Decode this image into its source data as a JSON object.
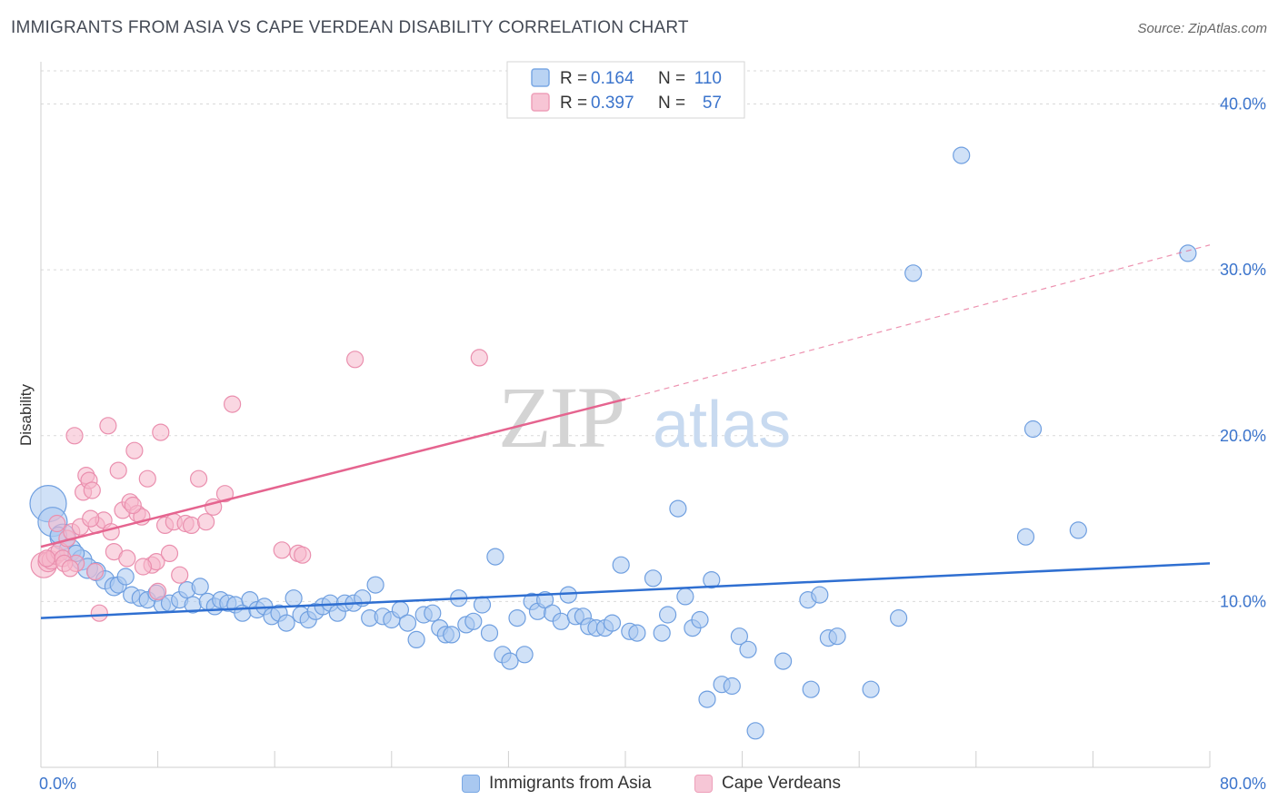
{
  "title": "IMMIGRANTS FROM ASIA VS CAPE VERDEAN DISABILITY CORRELATION CHART",
  "source": "Source: ZipAtlas.com",
  "watermark": {
    "zip": "ZIP",
    "atlas": "atlas"
  },
  "colors": {
    "blue": "#2f6fd1",
    "blue_fill": "#a9c8f0",
    "pink": "#e5648f",
    "pink_fill": "#f6b7cb",
    "value_text": "#3b74cc",
    "grid": "#d9d9d9"
  },
  "chart_data": {
    "type": "scatter",
    "ylabel": "Disability",
    "x_tick_labels": [
      "0.0%",
      "80.0%"
    ],
    "y_tick_labels": [
      "10.0%",
      "20.0%",
      "30.0%",
      "40.0%"
    ],
    "y_ticks": [
      10,
      20,
      30,
      40
    ],
    "xlim": [
      0,
      80
    ],
    "ylim": [
      0,
      42
    ],
    "grid": true,
    "legend": {
      "placement": "top-center",
      "entries": [
        {
          "r_label": "R =",
          "r_value": "0.164",
          "n_label": "N =",
          "n_value": "110"
        },
        {
          "r_label": "R =",
          "r_value": "0.397",
          "n_label": "N =",
          "n_value": "57"
        }
      ]
    },
    "series": [
      {
        "name": "Immigrants from Asia",
        "color": "#2f6fd1",
        "trend": {
          "x": [
            0,
            80
          ],
          "y": [
            9.0,
            12.3
          ],
          "dashed_to": null
        },
        "points": [
          [
            0.5,
            15.9,
            20
          ],
          [
            0.8,
            14.8,
            16
          ],
          [
            1.5,
            13.9,
            14
          ],
          [
            2.0,
            13.1,
            12
          ],
          [
            2.8,
            12.5,
            11
          ],
          [
            3.2,
            12.0,
            11
          ],
          [
            3.8,
            11.8,
            10
          ],
          [
            4.4,
            11.3,
            10
          ],
          [
            5.0,
            10.9,
            10
          ],
          [
            5.3,
            11.0,
            9
          ],
          [
            5.8,
            11.5,
            9
          ],
          [
            6.2,
            10.4,
            9
          ],
          [
            6.8,
            10.2,
            9
          ],
          [
            7.3,
            10.1,
            9
          ],
          [
            7.9,
            10.5,
            9
          ],
          [
            8.3,
            9.8,
            9
          ],
          [
            8.8,
            9.9,
            9
          ],
          [
            9.5,
            10.1,
            9
          ],
          [
            10.0,
            10.7,
            9
          ],
          [
            10.4,
            9.8,
            9
          ],
          [
            10.9,
            10.9,
            9
          ],
          [
            11.4,
            10.0,
            9
          ],
          [
            11.9,
            9.7,
            9
          ],
          [
            12.3,
            10.1,
            9
          ],
          [
            12.8,
            9.9,
            9
          ],
          [
            13.3,
            9.8,
            9
          ],
          [
            13.8,
            9.3,
            9
          ],
          [
            14.3,
            10.1,
            9
          ],
          [
            14.8,
            9.5,
            9
          ],
          [
            15.3,
            9.7,
            9
          ],
          [
            15.8,
            9.1,
            9
          ],
          [
            16.3,
            9.3,
            9
          ],
          [
            16.8,
            8.7,
            9
          ],
          [
            17.3,
            10.2,
            9
          ],
          [
            17.8,
            9.2,
            9
          ],
          [
            18.3,
            8.9,
            9
          ],
          [
            18.8,
            9.4,
            9
          ],
          [
            19.3,
            9.7,
            9
          ],
          [
            19.8,
            9.9,
            9
          ],
          [
            20.3,
            9.3,
            9
          ],
          [
            20.8,
            9.9,
            9
          ],
          [
            21.4,
            9.9,
            9
          ],
          [
            22.0,
            10.2,
            9
          ],
          [
            22.5,
            9.0,
            9
          ],
          [
            22.9,
            11.0,
            9
          ],
          [
            23.4,
            9.1,
            9
          ],
          [
            24.0,
            8.9,
            9
          ],
          [
            24.6,
            9.5,
            9
          ],
          [
            25.1,
            8.7,
            9
          ],
          [
            25.7,
            7.7,
            9
          ],
          [
            26.2,
            9.2,
            9
          ],
          [
            26.8,
            9.3,
            9
          ],
          [
            27.3,
            8.4,
            9
          ],
          [
            27.7,
            8.0,
            9
          ],
          [
            28.1,
            8.0,
            9
          ],
          [
            28.6,
            10.2,
            9
          ],
          [
            29.1,
            8.6,
            9
          ],
          [
            29.6,
            8.8,
            9
          ],
          [
            30.2,
            9.8,
            9
          ],
          [
            30.7,
            8.1,
            9
          ],
          [
            31.1,
            12.7,
            9
          ],
          [
            31.6,
            6.8,
            9
          ],
          [
            32.1,
            6.4,
            9
          ],
          [
            32.6,
            9.0,
            9
          ],
          [
            33.1,
            6.8,
            9
          ],
          [
            33.6,
            10.0,
            9
          ],
          [
            34.0,
            9.4,
            9
          ],
          [
            34.5,
            10.1,
            9
          ],
          [
            35.0,
            9.3,
            9
          ],
          [
            35.6,
            8.8,
            9
          ],
          [
            36.1,
            10.4,
            9
          ],
          [
            36.6,
            9.1,
            9
          ],
          [
            37.1,
            9.1,
            9
          ],
          [
            37.5,
            8.5,
            9
          ],
          [
            38.0,
            8.4,
            9
          ],
          [
            38.6,
            8.4,
            9
          ],
          [
            39.1,
            8.7,
            9
          ],
          [
            39.7,
            12.2,
            9
          ],
          [
            40.3,
            8.2,
            9
          ],
          [
            40.8,
            8.1,
            9
          ],
          [
            41.9,
            11.4,
            9
          ],
          [
            42.5,
            8.1,
            9
          ],
          [
            42.9,
            9.2,
            9
          ],
          [
            43.6,
            15.6,
            9
          ],
          [
            44.1,
            10.3,
            9
          ],
          [
            44.6,
            8.4,
            9
          ],
          [
            45.1,
            8.9,
            9
          ],
          [
            45.6,
            4.1,
            9
          ],
          [
            45.9,
            11.3,
            9
          ],
          [
            46.6,
            5.0,
            9
          ],
          [
            47.3,
            4.9,
            9
          ],
          [
            47.8,
            7.9,
            9
          ],
          [
            48.4,
            7.1,
            9
          ],
          [
            48.9,
            2.2,
            9
          ],
          [
            50.8,
            6.4,
            9
          ],
          [
            52.5,
            10.1,
            9
          ],
          [
            52.7,
            4.7,
            9
          ],
          [
            53.3,
            10.4,
            9
          ],
          [
            53.9,
            7.8,
            9
          ],
          [
            54.5,
            7.9,
            9
          ],
          [
            56.8,
            4.7,
            9
          ],
          [
            58.7,
            9.0,
            9
          ],
          [
            59.7,
            29.8,
            9
          ],
          [
            63.0,
            36.9,
            9
          ],
          [
            67.4,
            13.9,
            9
          ],
          [
            67.9,
            20.4,
            9
          ],
          [
            71.0,
            14.3,
            9
          ],
          [
            78.5,
            31.0,
            9
          ],
          [
            1.2,
            14.0,
            9
          ],
          [
            2.4,
            12.9,
            9
          ]
        ]
      },
      {
        "name": "Cape Verdeans",
        "color": "#e5648f",
        "trend": {
          "x": [
            0,
            40
          ],
          "y": [
            13.3,
            22.2
          ],
          "dashed_to": [
            80,
            31.5
          ]
        },
        "points": [
          [
            0.2,
            12.2,
            14
          ],
          [
            0.5,
            12.4,
            11
          ],
          [
            0.7,
            12.5,
            10
          ],
          [
            1.0,
            12.8,
            10
          ],
          [
            1.3,
            13.0,
            10
          ],
          [
            1.5,
            12.6,
            9
          ],
          [
            1.8,
            13.8,
            9
          ],
          [
            2.1,
            14.2,
            9
          ],
          [
            2.4,
            12.3,
            9
          ],
          [
            2.7,
            14.5,
            9
          ],
          [
            2.3,
            20.0,
            9
          ],
          [
            2.9,
            16.6,
            9
          ],
          [
            3.1,
            17.6,
            9
          ],
          [
            3.3,
            17.3,
            9
          ],
          [
            3.5,
            16.7,
            9
          ],
          [
            3.7,
            11.8,
            9
          ],
          [
            3.8,
            14.6,
            9
          ],
          [
            4.0,
            9.3,
            9
          ],
          [
            4.3,
            14.9,
            9
          ],
          [
            4.6,
            20.6,
            9
          ],
          [
            5.0,
            13.0,
            9
          ],
          [
            5.3,
            17.9,
            9
          ],
          [
            5.6,
            15.5,
            9
          ],
          [
            5.9,
            12.6,
            9
          ],
          [
            6.1,
            16.0,
            9
          ],
          [
            6.4,
            19.1,
            9
          ],
          [
            6.6,
            15.3,
            9
          ],
          [
            6.9,
            15.1,
            9
          ],
          [
            7.3,
            17.4,
            9
          ],
          [
            7.6,
            12.2,
            9
          ],
          [
            7.9,
            12.4,
            9
          ],
          [
            8.2,
            20.2,
            9
          ],
          [
            8.5,
            14.6,
            9
          ],
          [
            8.8,
            12.9,
            9
          ],
          [
            9.1,
            14.8,
            9
          ],
          [
            9.5,
            11.6,
            9
          ],
          [
            9.9,
            14.7,
            9
          ],
          [
            10.3,
            14.6,
            9
          ],
          [
            10.8,
            17.4,
            9
          ],
          [
            11.3,
            14.8,
            9
          ],
          [
            11.8,
            15.7,
            9
          ],
          [
            12.6,
            16.5,
            9
          ],
          [
            13.1,
            21.9,
            9
          ],
          [
            16.5,
            13.1,
            9
          ],
          [
            17.6,
            12.9,
            9
          ],
          [
            17.9,
            12.8,
            9
          ],
          [
            21.5,
            24.6,
            9
          ],
          [
            30.0,
            24.7,
            9
          ],
          [
            1.6,
            12.3,
            9
          ],
          [
            1.1,
            14.7,
            9
          ],
          [
            2.0,
            12.0,
            9
          ],
          [
            0.4,
            12.6,
            9
          ],
          [
            8.0,
            10.6,
            9
          ],
          [
            7.0,
            12.1,
            9
          ],
          [
            3.4,
            15.0,
            9
          ],
          [
            4.8,
            14.2,
            9
          ],
          [
            6.3,
            15.8,
            9
          ]
        ]
      }
    ]
  }
}
